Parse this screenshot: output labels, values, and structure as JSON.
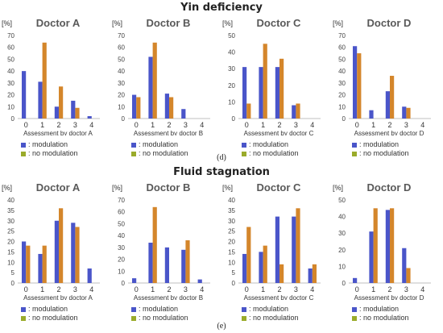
{
  "sections": [
    {
      "title": "Yin deficiency",
      "caption": "(d)"
    },
    {
      "title": "Fluid stagnation",
      "caption": "(e)"
    }
  ],
  "legend": {
    "modulation": "modulation",
    "no_modulation": "no modulation",
    "prefix": ":"
  },
  "colors": {
    "modulation": "#4a55c9",
    "no_modulation": "#d4862b",
    "no_modulation_legend": "#9aab2b",
    "axis": "#bfbfbf",
    "text": "#333333"
  },
  "chart_data": [
    {
      "type": "bar",
      "section": "Yin deficiency",
      "title": "Doctor A",
      "ylabel": "[%]",
      "xlabel": "Assessment by doctor A",
      "categories": [
        "0",
        "1",
        "2",
        "3",
        "4"
      ],
      "ylim": [
        0,
        70
      ],
      "yticks": [
        0,
        10,
        20,
        30,
        40,
        50,
        60,
        70
      ],
      "series": [
        {
          "name": "modulation",
          "values": [
            40,
            31,
            10,
            15,
            2
          ]
        },
        {
          "name": "no modulation",
          "values": [
            0,
            64,
            27,
            9,
            0
          ]
        }
      ]
    },
    {
      "type": "bar",
      "section": "Yin deficiency",
      "title": "Doctor B",
      "ylabel": "[%]",
      "xlabel": "Assessment by doctor B",
      "categories": [
        "0",
        "1",
        "2",
        "3",
        "4"
      ],
      "ylim": [
        0,
        70
      ],
      "yticks": [
        0,
        10,
        20,
        30,
        40,
        50,
        60,
        70
      ],
      "series": [
        {
          "name": "modulation",
          "values": [
            20,
            52,
            21,
            8,
            0
          ]
        },
        {
          "name": "no modulation",
          "values": [
            18,
            64,
            18,
            0,
            0
          ]
        }
      ]
    },
    {
      "type": "bar",
      "section": "Yin deficiency",
      "title": "Doctor C",
      "ylabel": "[%]",
      "xlabel": "Assessment by doctor C",
      "categories": [
        "0",
        "1",
        "2",
        "3",
        "4"
      ],
      "ylim": [
        0,
        50
      ],
      "yticks": [
        0,
        10,
        20,
        30,
        40,
        50
      ],
      "series": [
        {
          "name": "modulation",
          "values": [
            31,
            31,
            31,
            8,
            0
          ]
        },
        {
          "name": "no modulation",
          "values": [
            9,
            45,
            36,
            9,
            0
          ]
        }
      ]
    },
    {
      "type": "bar",
      "section": "Yin deficiency",
      "title": "Doctor D",
      "ylabel": "[%]",
      "xlabel": "Assessment by doctor D",
      "categories": [
        "0",
        "1",
        "2",
        "3",
        "4"
      ],
      "ylim": [
        0,
        70
      ],
      "yticks": [
        0,
        10,
        20,
        30,
        40,
        50,
        60,
        70
      ],
      "series": [
        {
          "name": "modulation",
          "values": [
            61,
            7,
            23,
            10,
            0
          ]
        },
        {
          "name": "no modulation",
          "values": [
            55,
            0,
            36,
            9,
            0
          ]
        }
      ]
    },
    {
      "type": "bar",
      "section": "Fluid stagnation",
      "title": "Doctor A",
      "ylabel": "[%]",
      "xlabel": "Assessment by doctor A",
      "categories": [
        "0",
        "1",
        "2",
        "3",
        "4"
      ],
      "ylim": [
        0,
        40
      ],
      "yticks": [
        0,
        5,
        10,
        15,
        20,
        25,
        30,
        35,
        40
      ],
      "series": [
        {
          "name": "modulation",
          "values": [
            20,
            14,
            30,
            29,
            7
          ]
        },
        {
          "name": "no modulation",
          "values": [
            18,
            18,
            36,
            27,
            0
          ]
        }
      ]
    },
    {
      "type": "bar",
      "section": "Fluid stagnation",
      "title": "Doctor B",
      "ylabel": "[%]",
      "xlabel": "Assessment by doctor B",
      "categories": [
        "0",
        "1",
        "2",
        "3",
        "4"
      ],
      "ylim": [
        0,
        70
      ],
      "yticks": [
        0,
        10,
        20,
        30,
        40,
        50,
        60,
        70
      ],
      "series": [
        {
          "name": "modulation",
          "values": [
            4,
            34,
            30,
            28,
            3
          ]
        },
        {
          "name": "no modulation",
          "values": [
            0,
            64,
            0,
            36,
            0
          ]
        }
      ]
    },
    {
      "type": "bar",
      "section": "Fluid stagnation",
      "title": "Doctor C",
      "ylabel": "[%]",
      "xlabel": "Assessment by doctor C",
      "categories": [
        "0",
        "1",
        "2",
        "3",
        "4"
      ],
      "ylim": [
        0,
        40
      ],
      "yticks": [
        0,
        5,
        10,
        15,
        20,
        25,
        30,
        35,
        40
      ],
      "series": [
        {
          "name": "modulation",
          "values": [
            14,
            15,
            32,
            32,
            7
          ]
        },
        {
          "name": "no modulation",
          "values": [
            27,
            18,
            9,
            36,
            9
          ]
        }
      ]
    },
    {
      "type": "bar",
      "section": "Fluid stagnation",
      "title": "Doctor D",
      "ylabel": "[%]",
      "xlabel": "Assessment by doctor D",
      "categories": [
        "0",
        "1",
        "2",
        "3",
        "4"
      ],
      "ylim": [
        0,
        50
      ],
      "yticks": [
        0,
        10,
        20,
        30,
        40,
        50
      ],
      "series": [
        {
          "name": "modulation",
          "values": [
            3,
            31,
            44,
            21,
            0
          ]
        },
        {
          "name": "no modulation",
          "values": [
            0,
            45,
            45,
            9,
            0
          ]
        }
      ]
    }
  ]
}
